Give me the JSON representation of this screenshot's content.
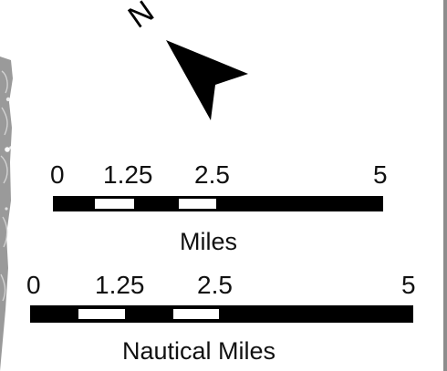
{
  "map": {
    "north_label": "N",
    "scale_bars": [
      {
        "unit_label": "Miles",
        "tick_labels": [
          "0",
          "1.25",
          "2.5",
          "5"
        ]
      },
      {
        "unit_label": "Nautical Miles",
        "tick_labels": [
          "0",
          "1.25",
          "2.5",
          "5"
        ]
      }
    ]
  },
  "colors": {
    "ink": "#000000",
    "paper": "#ffffff",
    "map_gray": "#8d8d8d"
  }
}
